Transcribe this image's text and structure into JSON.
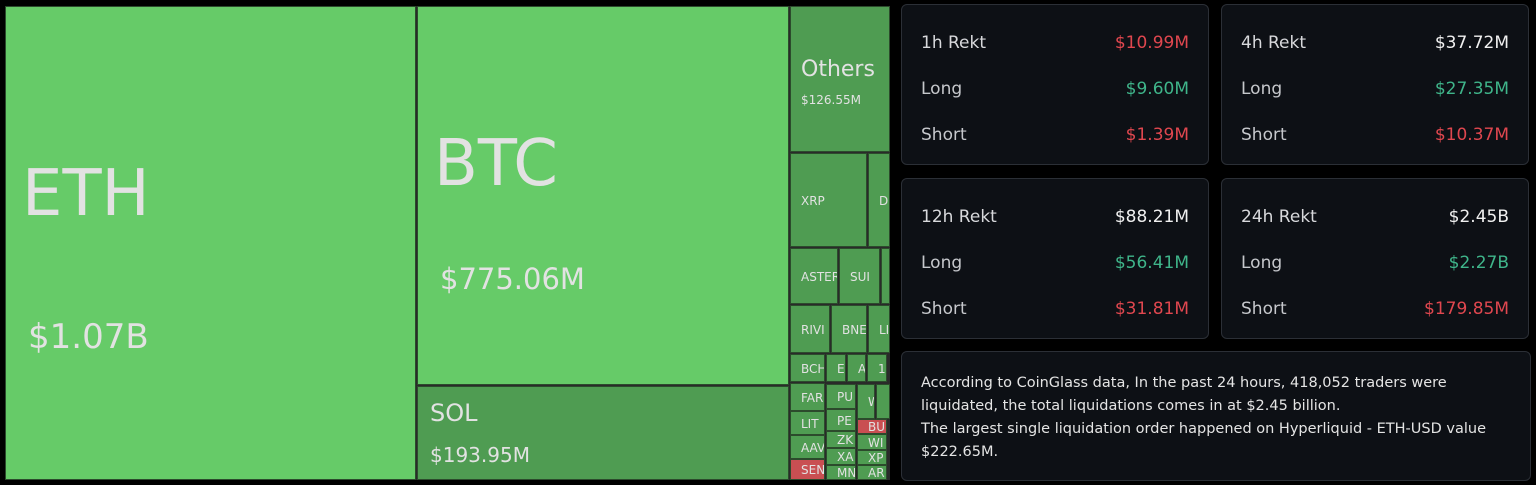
{
  "colors": {
    "bright": "#66cb68",
    "dark": "#4f9c52",
    "red": "#c94f52"
  },
  "treemap": [
    {
      "symbol": "ETH",
      "value": "$1.07B",
      "color": "bright"
    },
    {
      "symbol": "BTC",
      "value": "$775.06M",
      "color": "bright"
    },
    {
      "symbol": "SOL",
      "value": "$193.95M",
      "color": "dark"
    },
    {
      "symbol": "Others",
      "value": "$126.55M",
      "color": "dark"
    },
    {
      "symbol": "XRP",
      "color": "dark"
    },
    {
      "symbol": "D",
      "color": "dark"
    },
    {
      "symbol": "ASTER",
      "color": "dark"
    },
    {
      "symbol": "SUI",
      "color": "dark"
    },
    {
      "symbol": "",
      "color": "dark"
    },
    {
      "symbol": "RIVI",
      "color": "dark"
    },
    {
      "symbol": "BNE",
      "color": "dark"
    },
    {
      "symbol": "LI",
      "color": "dark"
    },
    {
      "symbol": "BCH",
      "color": "dark"
    },
    {
      "symbol": "E",
      "color": "dark"
    },
    {
      "symbol": "A",
      "color": "dark"
    },
    {
      "symbol": "1",
      "color": "dark"
    },
    {
      "symbol": "FAR",
      "color": "dark"
    },
    {
      "symbol": "LIT",
      "color": "dark"
    },
    {
      "symbol": "AAV",
      "color": "dark"
    },
    {
      "symbol": "SEN",
      "color": "red"
    },
    {
      "symbol": "PU",
      "color": "dark"
    },
    {
      "symbol": "PE",
      "color": "dark"
    },
    {
      "symbol": "ZK",
      "color": "dark"
    },
    {
      "symbol": "XA",
      "color": "dark"
    },
    {
      "symbol": "MN",
      "color": "dark"
    },
    {
      "symbol": "W",
      "color": "dark"
    },
    {
      "symbol": "",
      "color": "dark"
    },
    {
      "symbol": "BU",
      "color": "red"
    },
    {
      "symbol": "WI",
      "color": "dark"
    },
    {
      "symbol": "XP",
      "color": "dark"
    },
    {
      "symbol": "AR",
      "color": "dark"
    }
  ],
  "cards": [
    {
      "title": "1h Rekt",
      "total": "$10.99M",
      "total_color": "red",
      "long_label": "Long",
      "long": "$9.60M",
      "short_label": "Short",
      "short": "$1.39M"
    },
    {
      "title": "4h Rekt",
      "total": "$37.72M",
      "total_color": "white",
      "long_label": "Long",
      "long": "$27.35M",
      "short_label": "Short",
      "short": "$10.37M"
    },
    {
      "title": "12h Rekt",
      "total": "$88.21M",
      "total_color": "white",
      "long_label": "Long",
      "long": "$56.41M",
      "short_label": "Short",
      "short": "$31.81M"
    },
    {
      "title": "24h Rekt",
      "total": "$2.45B",
      "total_color": "white",
      "long_label": "Long",
      "long": "$2.27B",
      "short_label": "Short",
      "short": "$179.85M"
    }
  ],
  "summary": {
    "line1": "According to CoinGlass data, In the past 24 hours, 418,052 traders were liquidated, the total liquidations comes in at $2.45 billion.",
    "line2": "The largest single liquidation order happened on Hyperliquid - ETH-USD value $222.65M."
  }
}
